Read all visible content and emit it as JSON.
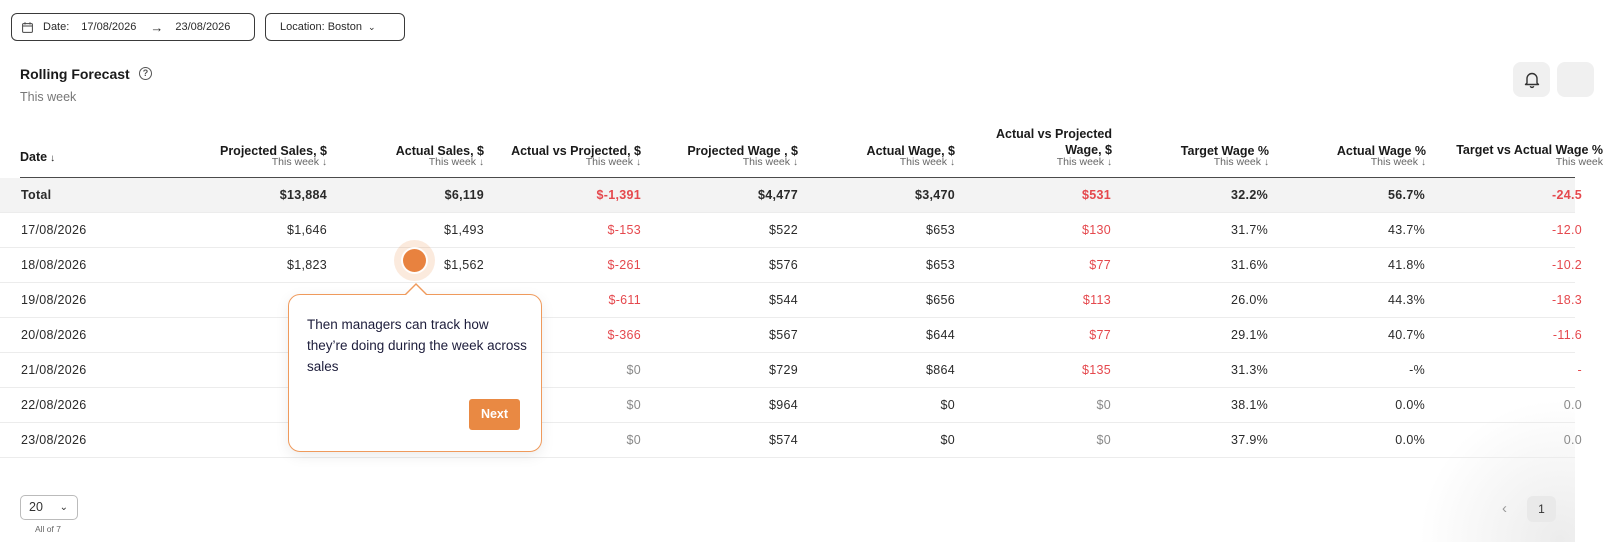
{
  "filters": {
    "date_label": "Date:",
    "date_from": "17/08/2026",
    "date_to": "23/08/2026",
    "location": "Location: Boston"
  },
  "header": {
    "title": "Rolling Forecast",
    "subtitle": "This week"
  },
  "table": {
    "columns": [
      {
        "key": "date",
        "label": "Date",
        "sub": ""
      },
      {
        "key": "projected_sales",
        "label": "Projected Sales, $",
        "sub": "This week"
      },
      {
        "key": "actual_sales",
        "label": "Actual Sales, $",
        "sub": "This week"
      },
      {
        "key": "actual_vs_projected",
        "label": "Actual vs Projected, $",
        "sub": "This week"
      },
      {
        "key": "projected_wage",
        "label": "Projected Wage , $",
        "sub": "This week"
      },
      {
        "key": "actual_wage",
        "label": "Actual Wage, $",
        "sub": "This week"
      },
      {
        "key": "actual_vs_projected_wage",
        "label": "Actual vs Projected Wage, $",
        "sub": "This week"
      },
      {
        "key": "target_wage_pct",
        "label": "Target Wage %",
        "sub": "This week"
      },
      {
        "key": "actual_wage_pct",
        "label": "Actual Wage %",
        "sub": "This week"
      },
      {
        "key": "target_vs_actual_wage",
        "label": "Target vs Actual Wage %",
        "sub": "This week"
      }
    ],
    "total": [
      "Total",
      "$13,884",
      "$6,119",
      "$-1,391",
      "$4,477",
      "$3,470",
      "$531",
      "32.2%",
      "56.7%",
      "-24.5"
    ],
    "rows": [
      [
        "17/08/2026",
        "$1,646",
        "$1,493",
        "$-153",
        "$522",
        "$653",
        "$130",
        "31.7%",
        "43.7%",
        "-12.0"
      ],
      [
        "18/08/2026",
        "$1,823",
        "$1,562",
        "$-261",
        "$576",
        "$653",
        "$77",
        "31.6%",
        "41.8%",
        "-10.2"
      ],
      [
        "19/08/2026",
        "$",
        "",
        "$-611",
        "$544",
        "$656",
        "$113",
        "26.0%",
        "44.3%",
        "-18.3"
      ],
      [
        "20/08/2026",
        "$",
        "",
        "$-366",
        "$567",
        "$644",
        "$77",
        "29.1%",
        "40.7%",
        "-11.6"
      ],
      [
        "21/08/2026",
        "$",
        "",
        "$0",
        "$729",
        "$864",
        "$135",
        "31.3%",
        "-%",
        "-"
      ],
      [
        "22/08/2026",
        "$",
        "",
        "$0",
        "$964",
        "$0",
        "$0",
        "38.1%",
        "0.0%",
        "0.0"
      ],
      [
        "23/08/2026",
        "$",
        "",
        "$0",
        "$574",
        "$0",
        "$0",
        "37.9%",
        "0.0%",
        "0.0"
      ]
    ]
  },
  "pagination": {
    "page_size": "20",
    "count_text": "All of 7",
    "current_page": "1"
  },
  "tour": {
    "text": "Then managers can track how they’re doing during the week across sales",
    "next_label": "Next"
  },
  "colors": {
    "accent": "#e98943",
    "negative": "#e5484d"
  }
}
